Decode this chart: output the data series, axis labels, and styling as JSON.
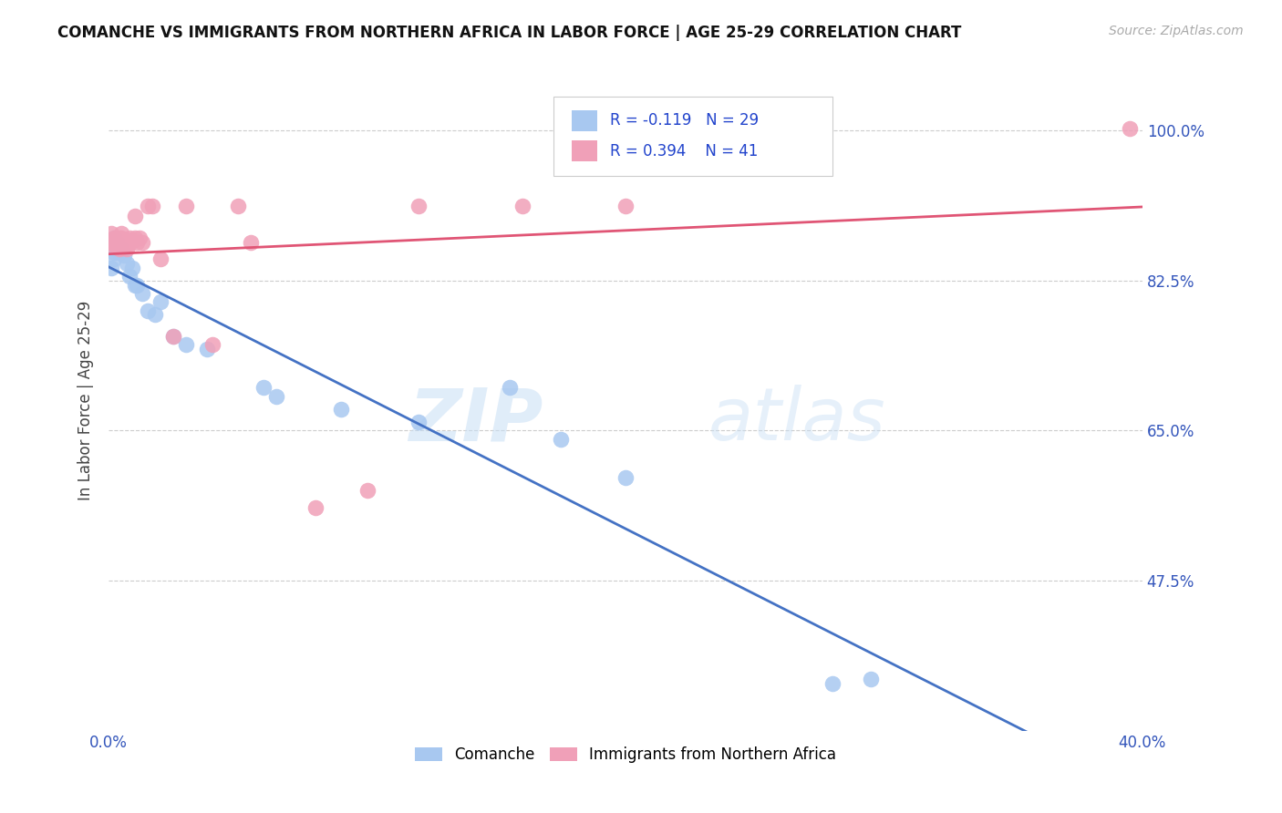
{
  "title": "COMANCHE VS IMMIGRANTS FROM NORTHERN AFRICA IN LABOR FORCE | AGE 25-29 CORRELATION CHART",
  "source": "Source: ZipAtlas.com",
  "ylabel": "In Labor Force | Age 25-29",
  "xlim": [
    0.0,
    0.4
  ],
  "ylim": [
    0.3,
    1.07
  ],
  "yticks": [
    0.475,
    0.65,
    0.825,
    1.0
  ],
  "ytick_labels": [
    "47.5%",
    "65.0%",
    "82.5%",
    "100.0%"
  ],
  "xticks": [
    0.0,
    0.05,
    0.1,
    0.15,
    0.2,
    0.25,
    0.3,
    0.35,
    0.4
  ],
  "xtick_labels": [
    "0.0%",
    "",
    "",
    "",
    "",
    "",
    "",
    "",
    "40.0%"
  ],
  "comanche_R": -0.119,
  "comanche_N": 29,
  "immigrants_R": 0.394,
  "immigrants_N": 41,
  "comanche_color": "#a8c8f0",
  "immigrants_color": "#f0a0b8",
  "line_comanche_color": "#4472c4",
  "line_immigrants_color": "#e05575",
  "watermark": "ZIPatlas",
  "comanche_x": [
    0.001,
    0.002,
    0.002,
    0.002,
    0.003,
    0.004,
    0.005,
    0.006,
    0.007,
    0.008,
    0.009,
    0.01,
    0.011,
    0.013,
    0.015,
    0.018,
    0.02,
    0.025,
    0.03,
    0.038,
    0.06,
    0.065,
    0.09,
    0.12,
    0.155,
    0.175,
    0.2,
    0.28,
    0.295
  ],
  "comanche_y": [
    0.84,
    0.875,
    0.858,
    0.85,
    0.87,
    0.858,
    0.862,
    0.855,
    0.845,
    0.83,
    0.84,
    0.82,
    0.82,
    0.81,
    0.79,
    0.785,
    0.8,
    0.76,
    0.75,
    0.745,
    0.7,
    0.69,
    0.675,
    0.66,
    0.7,
    0.64,
    0.595,
    0.355,
    0.36
  ],
  "immigrants_x": [
    0.001,
    0.001,
    0.002,
    0.002,
    0.002,
    0.003,
    0.003,
    0.003,
    0.004,
    0.004,
    0.004,
    0.005,
    0.005,
    0.005,
    0.006,
    0.006,
    0.007,
    0.007,
    0.008,
    0.008,
    0.008,
    0.009,
    0.01,
    0.01,
    0.011,
    0.012,
    0.013,
    0.015,
    0.017,
    0.02,
    0.025,
    0.03,
    0.04,
    0.05,
    0.055,
    0.08,
    0.1,
    0.12,
    0.16,
    0.2,
    0.395
  ],
  "immigrants_y": [
    0.87,
    0.88,
    0.875,
    0.87,
    0.865,
    0.875,
    0.87,
    0.865,
    0.868,
    0.862,
    0.875,
    0.87,
    0.88,
    0.875,
    0.865,
    0.87,
    0.862,
    0.87,
    0.875,
    0.87,
    0.868,
    0.872,
    0.875,
    0.9,
    0.87,
    0.875,
    0.87,
    0.912,
    0.912,
    0.85,
    0.76,
    0.912,
    0.75,
    0.912,
    0.87,
    0.56,
    0.58,
    0.912,
    0.912,
    0.912,
    1.002
  ]
}
